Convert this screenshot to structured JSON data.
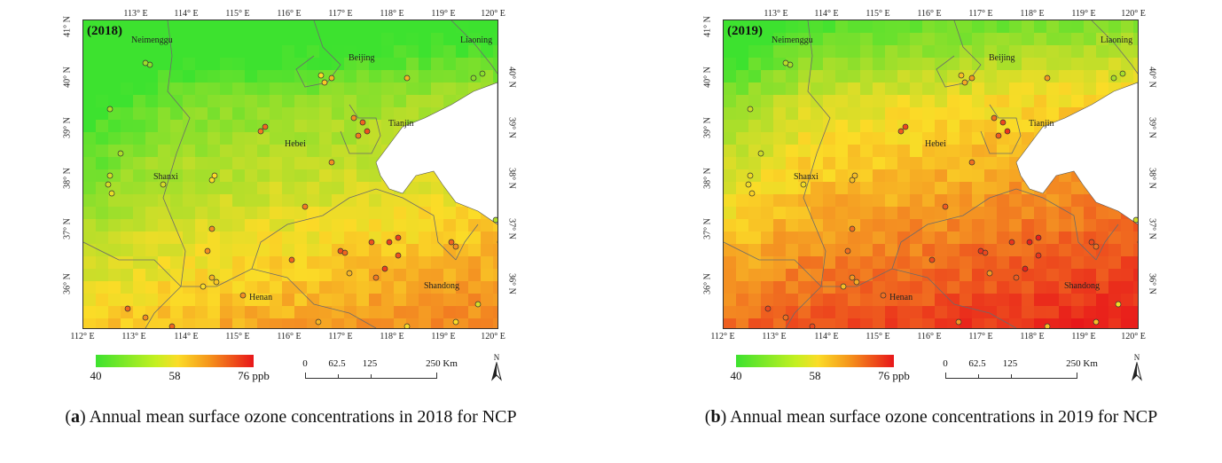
{
  "panels": [
    {
      "id": "a",
      "year_label": "(2018)",
      "caption_letter": "a",
      "caption_text": "Annual mean surface ozone concentrations in 2018 for NCP",
      "top_ticks": [
        "113° E",
        "114° E",
        "115° E",
        "116° E",
        "117° E",
        "118° E",
        "119° E",
        "120° E"
      ],
      "bottom_ticks": [
        "112° E",
        "113° E",
        "114° E",
        "115° E",
        "116° E",
        "117° E",
        "118° E",
        "119° E",
        "120° E"
      ],
      "left_ticks": [
        "41° N",
        "40° N",
        "39° N",
        "38° N",
        "37° N",
        "36° N"
      ],
      "right_ticks": [
        "40° N",
        "39° N",
        "38° N",
        "37° N",
        "36° N"
      ],
      "places": [
        "Neimenggu",
        "Liaoning",
        "Beijing",
        "Tianjin",
        "Hebei",
        "Shanxi",
        "Henan",
        "Shandong"
      ],
      "legend": {
        "min": "40",
        "mid": "58",
        "max": "76 ppb"
      },
      "scale": {
        "labels": [
          "0",
          "62.5",
          "125",
          "250 Km"
        ]
      },
      "north_label": "N",
      "level": 0.35
    },
    {
      "id": "b",
      "year_label": "(2019)",
      "caption_letter": "b",
      "caption_text": "Annual mean surface ozone concentrations in 2019 for NCP",
      "top_ticks": [
        "113° E",
        "114° E",
        "115° E",
        "116° E",
        "117° E",
        "118° E",
        "119° E",
        "120° E"
      ],
      "bottom_ticks": [
        "112° E",
        "113° E",
        "114° E",
        "115° E",
        "116° E",
        "117° E",
        "118° E",
        "119° E",
        "120° E"
      ],
      "left_ticks": [
        "41° N",
        "40° N",
        "39° N",
        "38° N",
        "37° N",
        "36° N"
      ],
      "right_ticks": [
        "40° N",
        "39° N",
        "38° N",
        "37° N",
        "36° N"
      ],
      "places": [
        "Neimenggu",
        "Liaoning",
        "Beijing",
        "Tianjin",
        "Hebei",
        "Shanxi",
        "Henan",
        "Shandong"
      ],
      "legend": {
        "min": "40",
        "mid": "58",
        "max": "76 ppb"
      },
      "scale": {
        "labels": [
          "0",
          "62.5",
          "125",
          "250 Km"
        ]
      },
      "north_label": "N",
      "level": 0.6
    }
  ],
  "colors": {
    "low": "#3de22f",
    "mid": "#fbdc27",
    "high": "#e8161a",
    "sea": "#ffffff",
    "boundary": "#6b6b6b"
  }
}
